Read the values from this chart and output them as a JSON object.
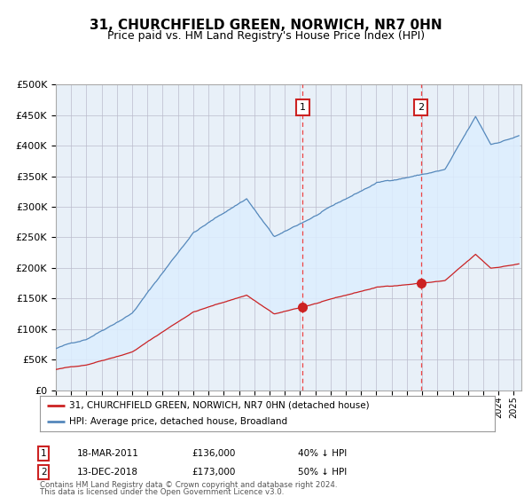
{
  "title": "31, CHURCHFIELD GREEN, NORWICH, NR7 0HN",
  "subtitle": "Price paid vs. HM Land Registry's House Price Index (HPI)",
  "title_fontsize": 11,
  "subtitle_fontsize": 9,
  "legend_line1": "31, CHURCHFIELD GREEN, NORWICH, NR7 0HN (detached house)",
  "legend_line2": "HPI: Average price, detached house, Broadland",
  "annotation1_label": "1",
  "annotation1_date": "18-MAR-2011",
  "annotation1_price": "£136,000",
  "annotation1_pct": "40% ↓ HPI",
  "annotation2_label": "2",
  "annotation2_date": "13-DEC-2018",
  "annotation2_price": "£173,000",
  "annotation2_pct": "50% ↓ HPI",
  "footnote_line1": "Contains HM Land Registry data © Crown copyright and database right 2024.",
  "footnote_line2": "This data is licensed under the Open Government Licence v3.0.",
  "hpi_color": "#5588bb",
  "hpi_fill_color": "#ddeeff",
  "price_color": "#cc2222",
  "marker_color": "#cc2222",
  "vline_color": "#ee4444",
  "box_edge_color": "#cc2222",
  "bg_color": "#e8f0f8",
  "grid_color": "#bbbbcc",
  "ylim": [
    0,
    500000
  ],
  "yticks": [
    0,
    50000,
    100000,
    150000,
    200000,
    250000,
    300000,
    350000,
    400000,
    450000,
    500000
  ],
  "xlim_start": 1995.0,
  "xlim_end": 2025.5,
  "purchase1_t": 2011.2,
  "purchase1_price": 136000,
  "purchase2_t": 2018.92,
  "purchase2_price": 173000
}
